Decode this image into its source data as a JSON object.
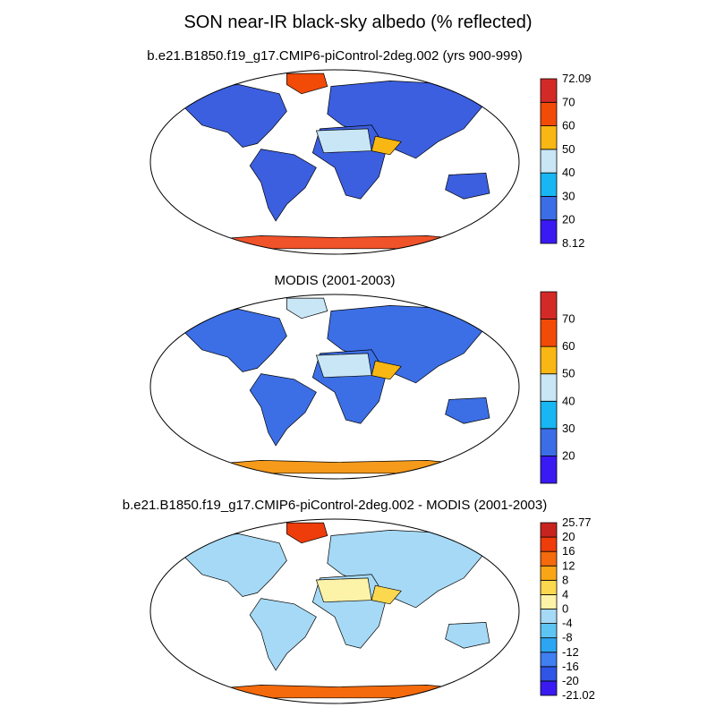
{
  "figure": {
    "title": "SON near-IR black-sky albedo (% reflected)",
    "panels": [
      {
        "title": "b.e21.B1850.f19_g17.CMIP6-piControl-2deg.002 (yrs 900-999)",
        "colorbar": {
          "colors": [
            "#3a1af2",
            "#3b6ee6",
            "#18b6f2",
            "#c8e6f5",
            "#f8b712",
            "#f24a07",
            "#d42a27"
          ],
          "labels": [
            "8.12",
            "20",
            "30",
            "40",
            "50",
            "60",
            "70",
            "72.09"
          ]
        },
        "regions": {
          "land": "#3c5fe0",
          "sahara": "#c8e6f5",
          "arabia": "#f8b712",
          "greenland": "#f24a07",
          "antarctica": "#f0522a"
        }
      },
      {
        "title": "MODIS (2001-2003)",
        "colorbar": {
          "colors": [
            "#3a1af2",
            "#3b6ee6",
            "#18b6f2",
            "#c8e6f5",
            "#f8b712",
            "#f24a07",
            "#d42a27"
          ],
          "labels": [
            "",
            "20",
            "30",
            "40",
            "50",
            "60",
            "70",
            ""
          ]
        },
        "regions": {
          "land": "#3c6fe6",
          "sahara": "#c8e6f5",
          "arabia": "#f8b712",
          "greenland": "#c8e6f5",
          "antarctica": "#f59a1a"
        }
      },
      {
        "title": "b.e21.B1850.f19_g17.CMIP6-piControl-2deg.002 - MODIS (2001-2003)",
        "colorbar": {
          "colors": [
            "#3a1af2",
            "#2f55e6",
            "#3f7ff0",
            "#2ca6f2",
            "#5ec4f2",
            "#a6d9f5",
            "#fdf3a8",
            "#fcd84e",
            "#f9a616",
            "#f46a0c",
            "#ee3c0a",
            "#c8241f"
          ],
          "labels": [
            "-21.02",
            "-20",
            "-16",
            "-12",
            "-8",
            "-4",
            "0",
            "4",
            "8",
            "12",
            "16",
            "20",
            "25.77"
          ]
        },
        "regions": {
          "land": "#a6d9f5",
          "sahara": "#fdf3a8",
          "arabia": "#fcd84e",
          "greenland": "#ee3c0a",
          "antarctica": "#f46a0c"
        }
      }
    ]
  }
}
